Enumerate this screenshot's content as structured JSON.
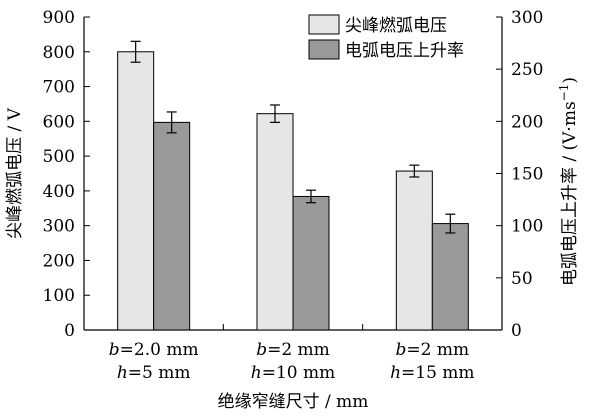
{
  "chart_data": {
    "type": "bar",
    "categories": [
      {
        "line1_var": "b",
        "line1_rest": "=2.0 mm",
        "line2_var": "h",
        "line2_rest": "=5 mm"
      },
      {
        "line1_var": "b",
        "line1_rest": "=2 mm",
        "line2_var": "h",
        "line2_rest": "=10 mm"
      },
      {
        "line1_var": "b",
        "line1_rest": "=2 mm",
        "line2_var": "h",
        "line2_rest": "=15 mm"
      }
    ],
    "series": [
      {
        "name": "尖峰燃弧电压",
        "axis": "left",
        "color": "#e6e6e6",
        "values": [
          800,
          622,
          457
        ],
        "errors": [
          30,
          25,
          17
        ]
      },
      {
        "name": "电弧电压上升率",
        "axis": "right",
        "color": "#999999",
        "values": [
          199,
          128,
          102
        ],
        "errors": [
          10,
          6,
          9
        ]
      }
    ],
    "xlabel": "绝缘窄缝尺寸 / mm",
    "ylabel_left": "尖峰燃弧电压 / V",
    "ylabel_right_main": "电弧电压上升率 / (V·ms",
    "ylabel_right_sup": "−1",
    "ylabel_right_close": ")",
    "ylim_left": [
      0,
      900
    ],
    "yticks_left": [
      0,
      100,
      200,
      300,
      400,
      500,
      600,
      700,
      800,
      900
    ],
    "ylim_right": [
      0,
      300
    ],
    "yticks_right": [
      0,
      50,
      100,
      150,
      200,
      250,
      300
    ],
    "grid": false,
    "legend_position": "top-right"
  }
}
